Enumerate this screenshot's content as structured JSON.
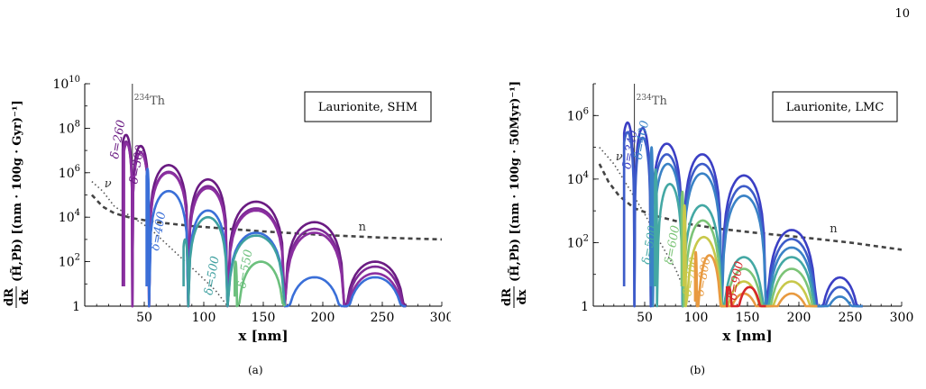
{
  "page_number": "10",
  "chart_data": [
    {
      "type": "line",
      "caption": "(a)",
      "legend_box": "Laurionite, SHM",
      "xlabel": "x [nm]",
      "xlim": [
        0,
        300
      ],
      "xticks": [
        "50",
        "100",
        "150",
        "200",
        "250",
        "300"
      ],
      "ylabel_top": "dR",
      "ylabel_bottom": "dx",
      "ylabel_rest": "(H̃,Pb) [(nm · 100g · Gyr)⁻¹]",
      "yscale": "log",
      "ylim": [
        1,
        10000000000.0
      ],
      "yticks": [
        {
          "base": "10",
          "exp": "10",
          "value": 10000000000.0
        },
        {
          "base": "10",
          "exp": "8",
          "value": 100000000.0
        },
        {
          "base": "10",
          "exp": "6",
          "value": 1000000.0
        },
        {
          "base": "10",
          "exp": "4",
          "value": 10000.0
        },
        {
          "base": "10",
          "exp": "2",
          "value": 100.0
        },
        {
          "base": "1",
          "exp": "",
          "value": 1
        }
      ],
      "th_line": {
        "x": 40,
        "label_sup": "234",
        "label": "Th"
      },
      "neutrino_label": "ν",
      "neutron_label": "n",
      "series": [
        {
          "label": "δ=260",
          "color": "#6a1b82",
          "start": 32,
          "first_zero": 40,
          "zeros": [
            54,
            87,
            120,
            168,
            218,
            270
          ],
          "peaks": [
            50000000.0,
            16000000.0,
            2200000.0,
            500000.0,
            50000.0,
            6000.0,
            100.0
          ],
          "label_at": [
            28,
            4000000.0
          ],
          "label_color": "#6a1b82"
        },
        {
          "label": "",
          "color": "#7e2a96",
          "start": 32,
          "first_zero": 40,
          "zeros": [
            54,
            87,
            120,
            168,
            218,
            270
          ],
          "peaks": [
            25000000.0,
            8000000.0,
            1100000.0,
            250000.0,
            25000.0,
            3000.0,
            60.0
          ],
          "label_at": null,
          "label_color": null
        },
        {
          "label": "δ=300",
          "color": "#8b2fa0",
          "start": 33,
          "first_zero": 40,
          "zeros": [
            54,
            87,
            120,
            168,
            218,
            270
          ],
          "peaks": [
            20000000.0,
            8000000.0,
            1000000.0,
            200000.0,
            20000.0,
            2000.0,
            30.0
          ],
          "label_at": [
            44,
            300000.0
          ],
          "label_color": "#6a1b82"
        },
        {
          "label": "δ=400",
          "color": "#3a6fd8",
          "start": 52,
          "first_zero": 54,
          "zeros": [
            87,
            120,
            168,
            218,
            270
          ],
          "peaks": [
            1500000.0,
            150000.0,
            20000.0,
            2000.0,
            20.0
          ],
          "label_at": [
            62,
            300.0
          ],
          "label_color": "#3a6fd8"
        },
        {
          "label": "δ=500",
          "color": "#3fa0a0",
          "start": 83,
          "first_zero": 87,
          "zeros": [
            120,
            168
          ],
          "peaks": [
            1000.0,
            10000.0,
            1500.0
          ],
          "label_at": [
            107,
            3
          ],
          "label_color": "#3fa0a0"
        },
        {
          "label": "δ=550",
          "color": "#6cc07d",
          "start": 126,
          "first_zero": 128,
          "zeros": [
            168
          ],
          "peaks": [
            100.0
          ],
          "label_at": [
            135,
            6
          ],
          "label_color": "#6cc07d"
        }
      ],
      "neutrino_curve": [
        [
          6,
          400000.0
        ],
        [
          15,
          150000.0
        ],
        [
          25,
          30000.0
        ],
        [
          40,
          10000.0
        ],
        [
          55,
          3000.0
        ],
        [
          75,
          300.0
        ],
        [
          95,
          30
        ],
        [
          110,
          5
        ],
        [
          120,
          1
        ]
      ],
      "neutron_curve": [
        [
          6,
          100000.0
        ],
        [
          15,
          30000.0
        ],
        [
          25,
          15000.0
        ],
        [
          40,
          9000.0
        ],
        [
          60,
          6000.0
        ],
        [
          90,
          4000.0
        ],
        [
          120,
          3000.0
        ],
        [
          150,
          2300.0
        ],
        [
          200,
          1600.0
        ],
        [
          250,
          1200.0
        ],
        [
          300,
          1000.0
        ]
      ]
    },
    {
      "type": "line",
      "caption": "(b)",
      "legend_box": "Laurionite, LMC",
      "xlabel": "x [nm]",
      "xlim": [
        0,
        300
      ],
      "xticks": [
        "50",
        "100",
        "150",
        "200",
        "250",
        "300"
      ],
      "ylabel_top": "dR",
      "ylabel_bottom": "dx",
      "ylabel_rest": "(H̃,Pb) [(nm · 100g · 50Myr)⁻¹]",
      "yscale": "log",
      "ylim": [
        1,
        10000000.0
      ],
      "yticks": [
        {
          "base": "10",
          "exp": "6",
          "value": 1000000.0
        },
        {
          "base": "10",
          "exp": "4",
          "value": 10000.0
        },
        {
          "base": "10",
          "exp": "2",
          "value": 100.0
        },
        {
          "base": "1",
          "exp": "",
          "value": 1
        }
      ],
      "th_line": {
        "x": 40,
        "label_sup": "234",
        "label": "Th"
      },
      "neutrino_label": "ν",
      "neutron_label": "n",
      "series": [
        {
          "label": "δ=340",
          "color": "#3b3fc4",
          "start": 30,
          "first_zero": 40,
          "zeros": [
            56,
            87,
            125,
            168,
            218,
            262
          ],
          "peaks": [
            600000.0,
            400000.0,
            130000.0,
            60000.0,
            13000.0,
            250.0,
            8
          ],
          "label_at": [
            36,
            20000.0
          ],
          "label_color": "#3b3fc4"
        },
        {
          "label": "",
          "color": "#3d5cc9",
          "start": 30,
          "first_zero": 40,
          "zeros": [
            56,
            87,
            125,
            168,
            218,
            262
          ],
          "peaks": [
            300000.0,
            200000.0,
            60000.0,
            30000.0,
            6000.0,
            130.0,
            4
          ],
          "label_at": null,
          "label_color": null
        },
        {
          "label": "δ=400",
          "color": "#3a82c6",
          "start": 56,
          "first_zero": 58,
          "zeros": [
            87,
            125,
            168,
            218,
            262
          ],
          "peaks": [
            100000.0,
            30000.0,
            15000.0,
            3000.0,
            70,
            2
          ],
          "label_at": [
            47,
            40000.0
          ],
          "label_color": "#3a82c6"
        },
        {
          "label": "δ=500",
          "color": "#44a8a4",
          "start": 60,
          "first_zero": 62,
          "zeros": [
            87,
            125,
            168,
            218
          ],
          "peaks": [
            20000.0,
            7000.0,
            1500.0,
            35
          ],
          "label_at": [
            55,
            20
          ],
          "label_color": "#44a8a4"
        },
        {
          "label": "δ=600",
          "color": "#7cc477",
          "start": 86,
          "first_zero": 88,
          "zeros": [
            125,
            168,
            218
          ],
          "peaks": [
            4000.0,
            500.0,
            15
          ],
          "label_at": [
            77,
            20
          ],
          "label_color": "#7cc477"
        },
        {
          "label": "δ=700",
          "color": "#c8c84a",
          "start": 88,
          "first_zero": 90,
          "zeros": [
            125,
            168,
            218
          ],
          "peaks": [
            1500.0,
            150.0,
            6
          ],
          "label_at": [
            95,
            2
          ],
          "label_color": "#c8c84a"
        },
        {
          "label": "δ=800",
          "color": "#e89a40",
          "start": 99,
          "first_zero": 101,
          "zeros": [
            125,
            168,
            218
          ],
          "peaks": [
            50,
            40,
            2.5
          ],
          "label_at": [
            107,
            2
          ],
          "label_color": "#e89a40"
        },
        {
          "label": "δ=900",
          "color": "#d6262a",
          "start": 130,
          "first_zero": 136,
          "zeros": [
            168
          ],
          "peaks": [
            4
          ],
          "label_at": [
            139,
            1.5
          ],
          "label_color": "#d6262a"
        }
      ],
      "neutrino_curve": [
        [
          6,
          100000.0
        ],
        [
          20,
          30000.0
        ],
        [
          35,
          5000.0
        ],
        [
          50,
          800.0
        ],
        [
          65,
          100.0
        ],
        [
          80,
          15
        ],
        [
          95,
          1
        ]
      ],
      "neutron_curve": [
        [
          6,
          30000.0
        ],
        [
          15,
          8000.0
        ],
        [
          25,
          3000.0
        ],
        [
          40,
          1200.0
        ],
        [
          60,
          700.0
        ],
        [
          90,
          400.0
        ],
        [
          120,
          280.0
        ],
        [
          160,
          200.0
        ],
        [
          200,
          150.0
        ],
        [
          250,
          100.0
        ],
        [
          300,
          60
        ]
      ]
    }
  ]
}
